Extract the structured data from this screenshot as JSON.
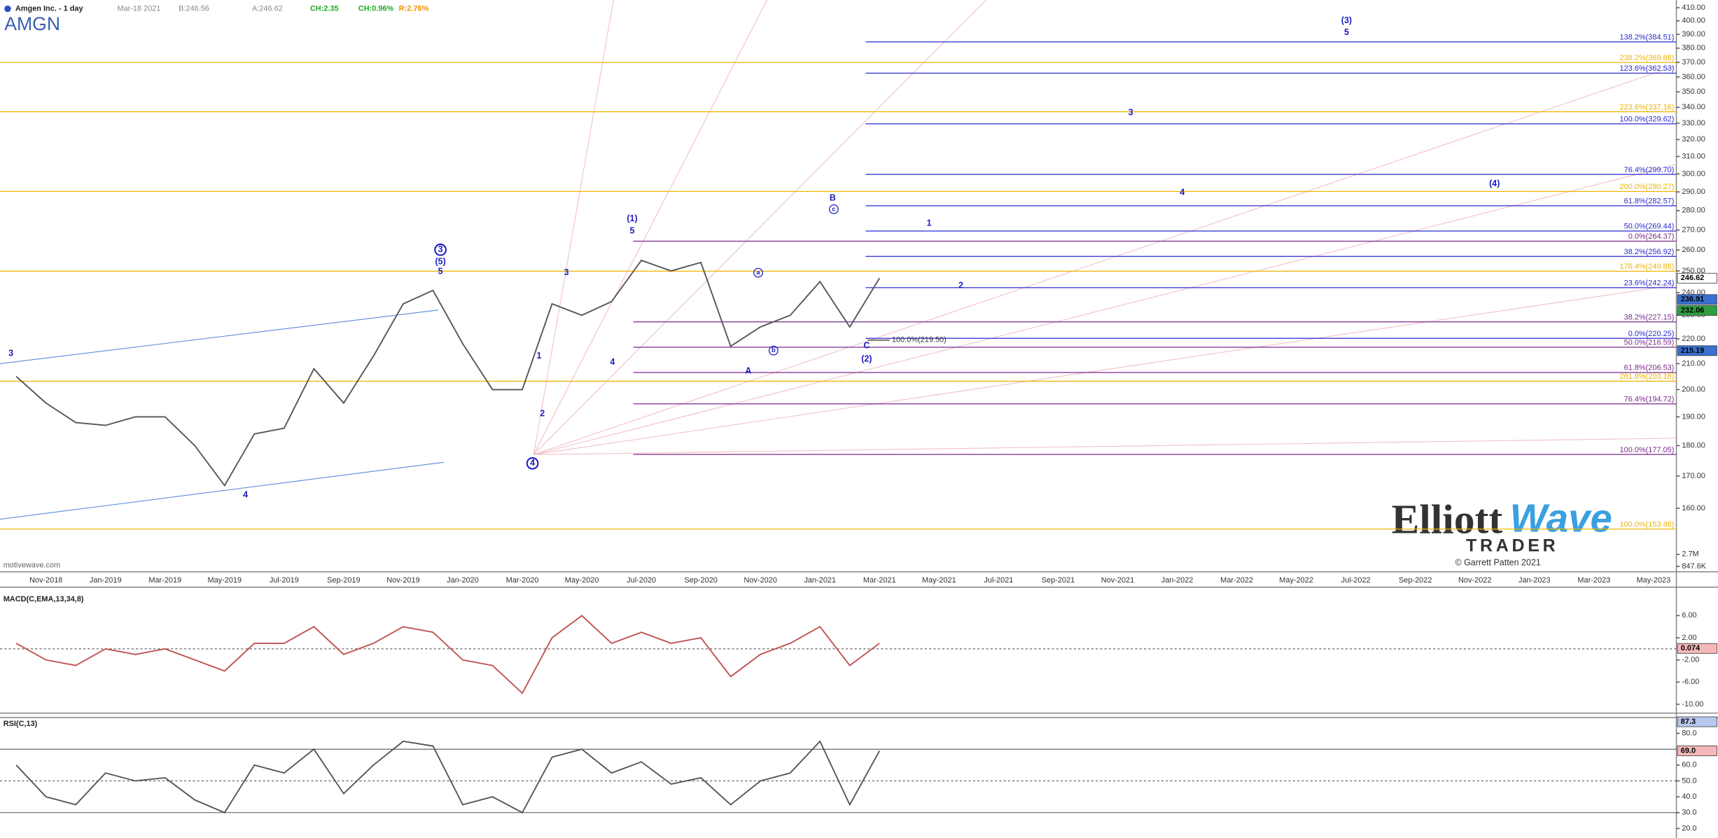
{
  "header": {
    "name": "Amgen Inc. - 1 day",
    "date": "Mar-18 2021",
    "bid": "B:246.56",
    "ask": "A:246.62",
    "change": "CH:2.35",
    "change_pct": "CH:0.96%",
    "range": "R:2.76%",
    "symbol": "AMGN",
    "watermark": "motivewave.com"
  },
  "logo": {
    "word1": "Elliott",
    "word2": "Wave",
    "word3": "TRADER",
    "copyright": "© Garrett Patten 2021"
  },
  "chart_data": [
    {
      "type": "line",
      "color": "#555555",
      "log_scale": true,
      "ylim": [
        142,
        416
      ],
      "categories": [
        null,
        "Nov-2018",
        null,
        "Jan-2019",
        null,
        "Mar-2019",
        null,
        "May-2019",
        null,
        "Jul-2019",
        null,
        "Sep-2019",
        null,
        "Nov-2019",
        null,
        "Jan-2020",
        null,
        "Mar-2020",
        null,
        "May-2020",
        null,
        "Jul-2020",
        null,
        "Sep-2020",
        null,
        "Nov-2020",
        null,
        "Jan-2021",
        null,
        "Mar-2021",
        null,
        "May-2021",
        null,
        "Jul-2021",
        null,
        "Sep-2021",
        null,
        "Nov-2021",
        null,
        "Jan-2022",
        null,
        "Mar-2022",
        null,
        "May-2022",
        null,
        "Jul-2022",
        null,
        "Sep-2022",
        null,
        "Nov-2022",
        null,
        "Jan-2023",
        null,
        "Mar-2023",
        null,
        "May-2023"
      ],
      "values": [
        205,
        195,
        188,
        187,
        190,
        190,
        180,
        167,
        184,
        186,
        208,
        195,
        213,
        235,
        241,
        218,
        200,
        200,
        235,
        230,
        236,
        255,
        250,
        254,
        217,
        225,
        230,
        245,
        225,
        246.62,
        null,
        null,
        null,
        null,
        null,
        null,
        null,
        null,
        null,
        null,
        null,
        null,
        null,
        null,
        null,
        null,
        null,
        null,
        null,
        null,
        null,
        null,
        null,
        null,
        null,
        null
      ],
      "yticks": [
        {
          "value": 160,
          "label": "160.00"
        },
        {
          "value": 170,
          "label": "170.00"
        },
        {
          "value": 180,
          "label": "180.00"
        },
        {
          "value": 190,
          "label": "190.00"
        },
        {
          "value": 200,
          "label": "200.00"
        },
        {
          "value": 210,
          "label": "210.00"
        },
        {
          "value": 220,
          "label": "220.00"
        },
        {
          "value": 230,
          "label": "230.00"
        },
        {
          "value": 240,
          "label": "240.00"
        },
        {
          "value": 250,
          "label": "250.00"
        },
        {
          "value": 260,
          "label": "260.00"
        },
        {
          "value": 270,
          "label": "270.00"
        },
        {
          "value": 280,
          "label": "280.00"
        },
        {
          "value": 290,
          "label": "290.00"
        },
        {
          "value": 300,
          "label": "300.00"
        },
        {
          "value": 310,
          "label": "310.00"
        },
        {
          "value": 320,
          "label": "320.00"
        },
        {
          "value": 330,
          "label": "330.00"
        },
        {
          "value": 340,
          "label": "340.00"
        },
        {
          "value": 350,
          "label": "350.00"
        },
        {
          "value": 360,
          "label": "360.00"
        },
        {
          "value": 370,
          "label": "370.00"
        },
        {
          "value": 380,
          "label": "380.00"
        },
        {
          "value": 390,
          "label": "390.00"
        },
        {
          "value": 400,
          "label": "400.00"
        },
        {
          "value": 410,
          "label": "410.00"
        }
      ],
      "value_tags": [
        {
          "value": 246.62,
          "color": "#ffffff"
        },
        {
          "value": 236.91,
          "color": "#3a6fd0"
        },
        {
          "value": 232.06,
          "color": "#2ea043"
        },
        {
          "value": 215.19,
          "color": "#3a6fd0"
        }
      ],
      "fib_groups": [
        {
          "color": "#f0b400",
          "levels": [
            {
              "label": "238.2%(369.88)",
              "value": 369.88
            },
            {
              "label": "223.6%(337.16)",
              "value": 337.16
            },
            {
              "label": "200.0%(290.27)",
              "value": 290.27
            },
            {
              "label": "176.4%(249.88)",
              "value": 249.88
            },
            {
              "label": "261.8%(203.18)",
              "value": 203.18
            },
            {
              "label": "100.0%(153.88)",
              "value": 153.88
            }
          ]
        },
        {
          "color": "#7a2a8a",
          "levels": [
            {
              "label": "0.0%(264.37)",
              "value": 264.37
            },
            {
              "label": "38.2%(227.15)",
              "value": 227.15
            },
            {
              "label": "50.0%(216.59)",
              "value": 216.59
            },
            {
              "label": "61.8%(206.53)",
              "value": 206.53
            },
            {
              "label": "76.4%(194.72)",
              "value": 194.72
            },
            {
              "label": "100.0%(177.05)",
              "value": 177.05
            }
          ]
        },
        {
          "color": "#2a2ad0",
          "levels": [
            {
              "label": "138.2%(384.51)",
              "value": 384.51
            },
            {
              "label": "123.6%(362.53)",
              "value": 362.53
            },
            {
              "label": "100.0%(329.62)",
              "value": 329.62
            },
            {
              "label": "76.4%(299.70)",
              "value": 299.7
            },
            {
              "label": "61.8%(282.57)",
              "value": 282.57
            },
            {
              "label": "50.0%(269.44)",
              "value": 269.44
            },
            {
              "label": "38.2%(256.92)",
              "value": 256.92
            },
            {
              "label": "23.6%(242.24)",
              "value": 242.24
            },
            {
              "label": "0.0%(220.25)",
              "value": 220.25
            }
          ]
        }
      ],
      "c_target": {
        "label": "100.0%(219.50)",
        "value": 219.5
      },
      "annotations": [
        "3",
        "4",
        "3",
        "(5)",
        "5",
        "4",
        "1",
        "2",
        "3",
        "4",
        "(1)",
        "5",
        "A",
        "a",
        "b",
        "c",
        "B",
        "C",
        "(2)",
        "1",
        "2",
        "3",
        "4",
        "(4)",
        "(3)",
        "5"
      ],
      "volume": {
        "ylim": [
          0,
          13900000
        ],
        "ticks": [
          {
            "value": 2700000,
            "label": "2.7M"
          },
          {
            "value": 847600,
            "label": "847.6K"
          }
        ]
      }
    },
    {
      "type": "line",
      "title": "MACD(C,EMA,13,34,8)",
      "color": "#c05050",
      "ylim": [
        -11.6,
        10.35
      ],
      "values": [
        1,
        -2,
        -3,
        0,
        -1,
        0,
        -2,
        -4,
        1,
        1,
        4,
        -1,
        1,
        4,
        3,
        -2,
        -3,
        -8,
        2,
        6,
        1,
        3,
        1,
        2,
        -5,
        -1,
        1,
        4,
        -3,
        1
      ],
      "yticks": [
        {
          "value": 6,
          "label": "6.00"
        },
        {
          "value": 2,
          "label": "2.00"
        },
        {
          "value": -2,
          "label": "-2.00"
        },
        {
          "value": -6,
          "label": "-6.00"
        },
        {
          "value": -10,
          "label": "-10.00"
        }
      ],
      "value_tags": [
        {
          "value": 0.074,
          "color": "#f4b8b8"
        }
      ]
    },
    {
      "type": "line",
      "title": "RSI(C,13)",
      "color": "#555555",
      "ylim": [
        14,
        90
      ],
      "levels": [
        70,
        50,
        30
      ],
      "values": [
        60,
        40,
        35,
        55,
        50,
        52,
        38,
        30,
        60,
        55,
        70,
        42,
        60,
        75,
        72,
        35,
        40,
        30,
        65,
        70,
        55,
        62,
        48,
        52,
        35,
        50,
        55,
        75,
        35,
        69
      ],
      "yticks": [
        {
          "value": 80,
          "label": "80.0"
        },
        {
          "value": 60,
          "label": "60.0"
        },
        {
          "value": 50,
          "label": "50.0"
        },
        {
          "value": 40,
          "label": "40.0"
        },
        {
          "value": 30,
          "label": "30.0"
        },
        {
          "value": 20,
          "label": "20.0"
        }
      ],
      "value_tags": [
        {
          "value": 87.3,
          "color": "#b8c8f0"
        },
        {
          "value": 69,
          "label": "69.0",
          "color": "#f4b8b8"
        }
      ]
    }
  ]
}
